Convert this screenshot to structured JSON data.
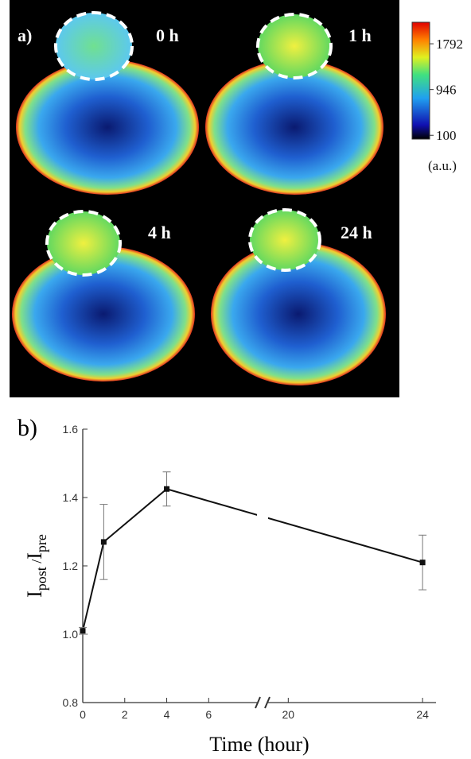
{
  "panel_a": {
    "label": "a)",
    "time_labels": [
      "0 h",
      "1 h",
      "4 h",
      "24 h"
    ],
    "colorbar": {
      "ticks": [
        1792,
        946,
        100
      ],
      "unit": "(a.u.)",
      "lim": [
        30,
        2190
      ]
    }
  },
  "chart_data": {
    "type": "line",
    "panel_label": "b)",
    "x": [
      0,
      1,
      4,
      24
    ],
    "series": [
      {
        "values": [
          1.01,
          1.27,
          1.425,
          1.21
        ],
        "errors": [
          0.01,
          0.11,
          0.05,
          0.08
        ],
        "color": "#111111"
      }
    ],
    "xlim": [
      0,
      24.4
    ],
    "x_break": [
      8.3,
      19.4
    ],
    "xticks": [
      0,
      2,
      4,
      6,
      20,
      24
    ],
    "ylim": [
      0.8,
      1.6
    ],
    "yticks": [
      0.8,
      {
        "value": 1,
        "label": "1.0"
      },
      1.2,
      1.4,
      1.6
    ],
    "x_label": "Time (hour)",
    "y_label": {
      "base1": "I",
      "sub1": "post",
      "sep": " /",
      "base2": "I",
      "sub2": "pre"
    }
  }
}
